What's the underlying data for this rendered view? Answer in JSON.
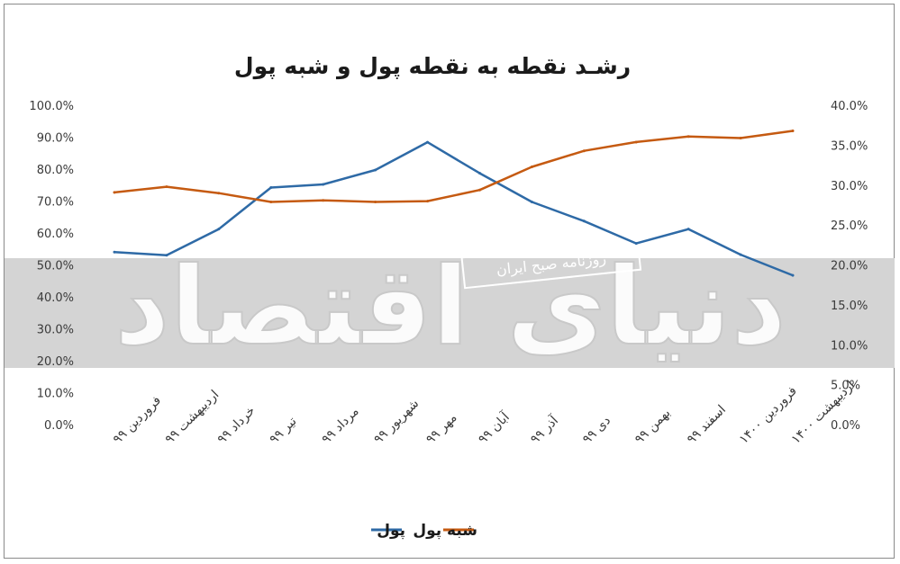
{
  "chart_data": {
    "type": "line",
    "title": "رشـد نقطه به نقطه پول و شبه پول",
    "categories": [
      "فروردین ۹۹",
      "اردیبهشت ۹۹",
      "خرداد ۹۹",
      "تیر ۹۹",
      "مرداد ۹۹",
      "شهریور ۹۹",
      "مهر ۹۹",
      "آبان ۹۹",
      "آذر ۹۹",
      "دی ۹۹",
      "بهمن ۹۹",
      "اسفند ۹۹",
      "فروردین ۱۴۰۰",
      "اردیبهشت ۱۴۰۰"
    ],
    "series": [
      {
        "name": "پول",
        "axis": "left",
        "color": "#2e6aa6",
        "values": [
          54.3,
          53.3,
          61.5,
          74.5,
          75.5,
          80.0,
          88.7,
          79.0,
          70.0,
          64.0,
          57.0,
          61.5,
          53.5,
          47.0
        ]
      },
      {
        "name": "شبه پول",
        "axis": "right",
        "color": "#c55a11",
        "values": [
          29.2,
          29.9,
          29.1,
          28.0,
          28.2,
          28.0,
          28.1,
          29.5,
          32.4,
          34.4,
          35.5,
          36.2,
          36.0,
          36.9
        ]
      }
    ],
    "y_left": {
      "min": 0,
      "max": 100,
      "step": 10,
      "tick_labels": [
        "0.0%",
        "10.0%",
        "20.0%",
        "30.0%",
        "40.0%",
        "50.0%",
        "60.0%",
        "70.0%",
        "80.0%",
        "90.0%",
        "100.0%"
      ]
    },
    "y_right": {
      "min": 0,
      "max": 40,
      "step": 5,
      "tick_labels": [
        "0.0%",
        "5.0%",
        "10.0%",
        "15.0%",
        "20.0%",
        "25.0%",
        "30.0%",
        "35.0%",
        "40.0%"
      ]
    },
    "grid": false,
    "legend": "bottom-center",
    "watermark": {
      "brand": "دنیای اقتصاد",
      "tagline": "روزنامه صبح ایران"
    }
  }
}
